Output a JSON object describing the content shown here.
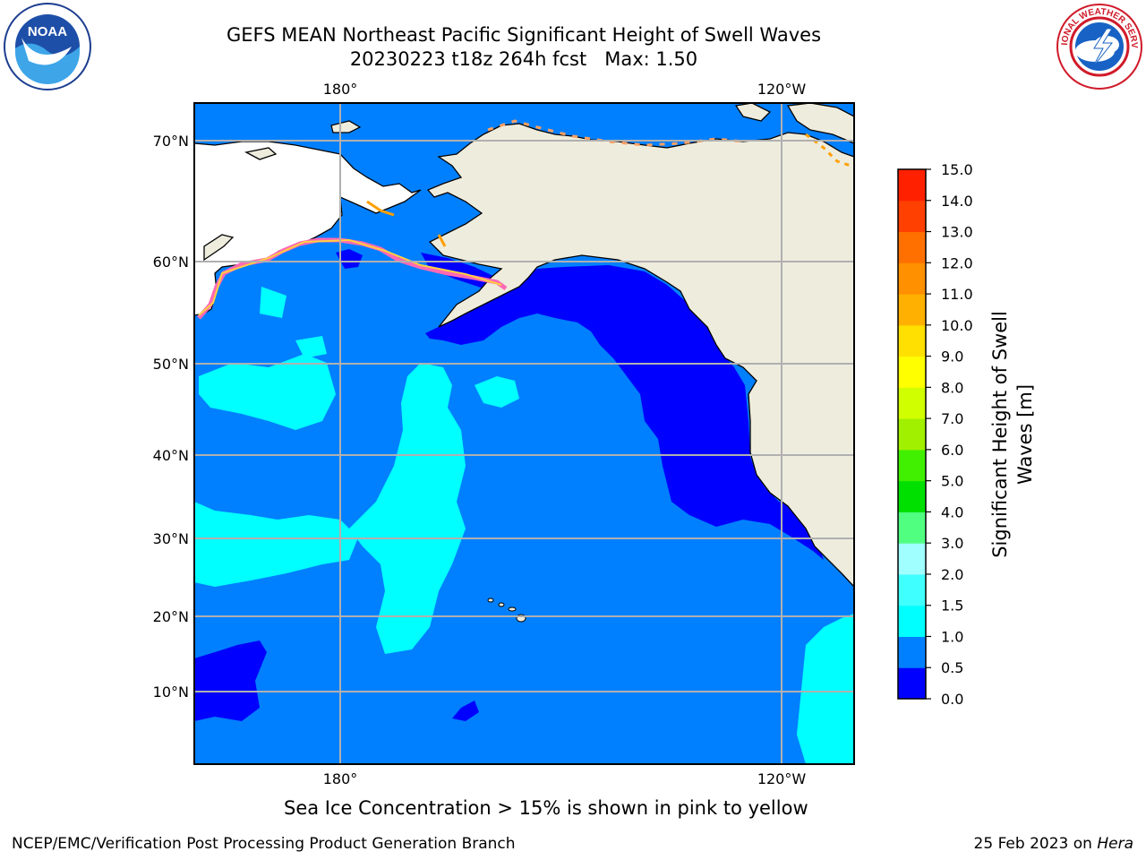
{
  "header": {
    "title_line1": "GEFS MEAN Northeast Pacific Significant Height of Swell Waves",
    "title_line2": "20230223 t18z 264h fcst   Max: 1.50"
  },
  "logos": {
    "left": "noaa-logo",
    "left_text": "NOAA",
    "right": "national-weather-service-logo",
    "right_text": "NATIONAL WEATHER SERVICE"
  },
  "map": {
    "lon_labels_top": [
      "180°",
      "120°W"
    ],
    "lon_labels_bottom": [
      "180°",
      "120°W"
    ],
    "lat_labels": [
      "70°N",
      "60°N",
      "50°N",
      "40°N",
      "30°N",
      "20°N",
      "10°N"
    ],
    "colors": {
      "ocean_0_05": "#0000ff",
      "ocean_05_10": "#0080ff",
      "ocean_10_15": "#00ffff",
      "land": "#eeecdd",
      "ice": "#ff69b4"
    }
  },
  "colorbar": {
    "label_line1": "Significant Height of Swell",
    "label_line2": "Waves [m]",
    "ticks": [
      "15.0",
      "14.0",
      "13.0",
      "12.0",
      "11.0",
      "10.0",
      "9.0",
      "8.0",
      "7.0",
      "6.0",
      "5.0",
      "4.0",
      "3.0",
      "2.0",
      "1.5",
      "1.0",
      "0.5",
      "0.0"
    ],
    "colors_bottom_to_top": [
      "#0000ff",
      "#0080ff",
      "#00ffff",
      "#40ffff",
      "#a0ffff",
      "#50ff80",
      "#00e000",
      "#40f000",
      "#a0f000",
      "#d0ff00",
      "#ffff00",
      "#ffe000",
      "#ffb000",
      "#ff9000",
      "#ff7000",
      "#ff4000",
      "#ff2000"
    ]
  },
  "footnote": "Sea Ice Concentration > 15% is shown in pink to yellow",
  "footer": {
    "credit": "NCEP/EMC/Verification Post Processing Product Generation Branch",
    "date": "25 Feb 2023 on ",
    "host": "Hera"
  }
}
